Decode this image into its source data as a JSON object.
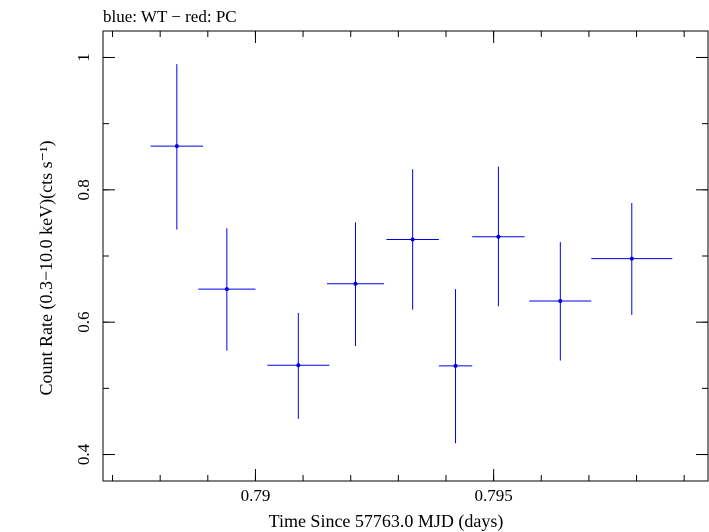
{
  "chart_data": {
    "type": "scatter",
    "title": "blue: WT − red: PC",
    "xlabel": "Time Since 57763.0 MJD (days)",
    "ylabel": "Count Rate (0.3−10.0 keV)(cts s⁻¹)",
    "xlim": [
      0.7868,
      0.7995
    ],
    "ylim": [
      0.36,
      1.04
    ],
    "x_ticks": [
      {
        "value": 0.79,
        "label": "0.79"
      },
      {
        "value": 0.795,
        "label": "0.795"
      }
    ],
    "y_ticks": [
      {
        "value": 0.4,
        "label": "0.4"
      },
      {
        "value": 0.6,
        "label": "0.6"
      },
      {
        "value": 0.8,
        "label": "0.8"
      },
      {
        "value": 1.0,
        "label": "1"
      }
    ],
    "x_minor_step": 0.001,
    "y_minor_step": 0.1,
    "grid": false,
    "color": "#0000e6",
    "series": [
      {
        "points": [
          {
            "x": 0.78835,
            "xerr": 0.00055,
            "y": 0.866,
            "yerr_lo": 0.126,
            "yerr_hi": 0.124
          },
          {
            "x": 0.7894,
            "xerr": 0.0006,
            "y": 0.65,
            "yerr_lo": 0.093,
            "yerr_hi": 0.092
          },
          {
            "x": 0.7909,
            "xerr": 0.00065,
            "y": 0.535,
            "yerr_lo": 0.081,
            "yerr_hi": 0.079
          },
          {
            "x": 0.7921,
            "xerr": 0.0006,
            "y": 0.658,
            "yerr_lo": 0.094,
            "yerr_hi": 0.093
          },
          {
            "x": 0.7933,
            "xerr": 0.00055,
            "y": 0.725,
            "yerr_lo": 0.106,
            "yerr_hi": 0.106
          },
          {
            "x": 0.7942,
            "xerr": 0.00035,
            "y": 0.534,
            "yerr_lo": 0.117,
            "yerr_hi": 0.116
          },
          {
            "x": 0.7951,
            "xerr": 0.00055,
            "y": 0.729,
            "yerr_lo": 0.105,
            "yerr_hi": 0.106
          },
          {
            "x": 0.7964,
            "xerr": 0.00065,
            "y": 0.632,
            "yerr_lo": 0.09,
            "yerr_hi": 0.089
          },
          {
            "x": 0.7979,
            "xerr": 0.00085,
            "y": 0.696,
            "yerr_lo": 0.085,
            "yerr_hi": 0.084
          }
        ]
      }
    ]
  }
}
